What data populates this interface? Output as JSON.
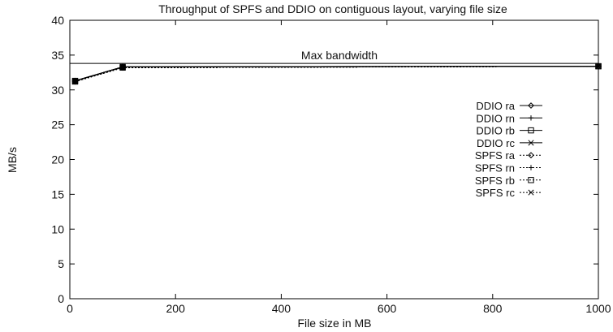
{
  "chart_data": {
    "type": "line",
    "title": "Throughput of SPFS and DDIO on contiguous layout, varying file size",
    "xlabel": "File size in MB",
    "ylabel": "MB/s",
    "xlim": [
      0,
      1000
    ],
    "ylim": [
      0,
      40
    ],
    "x_ticks": [
      0,
      200,
      400,
      600,
      800,
      1000
    ],
    "y_ticks": [
      0,
      5,
      10,
      15,
      20,
      25,
      30,
      35,
      40
    ],
    "x_tick_labels": [
      "0",
      "200",
      "400",
      "600",
      "800",
      "1000"
    ],
    "y_tick_labels": [
      "0",
      "5",
      "10",
      "15",
      "20",
      "25",
      "30",
      "35",
      "40"
    ],
    "grid": false,
    "legend_position": "right",
    "x": [
      10,
      100,
      1000
    ],
    "series": [
      {
        "name": "DDIO ra",
        "values": [
          31.3,
          33.3,
          33.4
        ],
        "marker": "diamond",
        "dash": "solid"
      },
      {
        "name": "DDIO rn",
        "values": [
          31.3,
          33.3,
          33.4
        ],
        "marker": "plus",
        "dash": "solid"
      },
      {
        "name": "DDIO rb",
        "values": [
          31.3,
          33.3,
          33.4
        ],
        "marker": "square",
        "dash": "solid"
      },
      {
        "name": "DDIO rc",
        "values": [
          31.3,
          33.3,
          33.4
        ],
        "marker": "cross",
        "dash": "solid"
      },
      {
        "name": "SPFS ra",
        "values": [
          31.2,
          33.2,
          33.4
        ],
        "marker": "diamond",
        "dash": "dotted"
      },
      {
        "name": "SPFS rn",
        "values": [
          31.2,
          33.2,
          33.4
        ],
        "marker": "plus",
        "dash": "dotted"
      },
      {
        "name": "SPFS rb",
        "values": [
          31.2,
          33.2,
          33.4
        ],
        "marker": "square",
        "dash": "dotted"
      },
      {
        "name": "SPFS rc",
        "values": [
          31.2,
          33.2,
          33.4
        ],
        "marker": "cross",
        "dash": "dotted"
      }
    ],
    "reference_line": {
      "label": "Max bandwidth",
      "value": 33.8
    }
  }
}
